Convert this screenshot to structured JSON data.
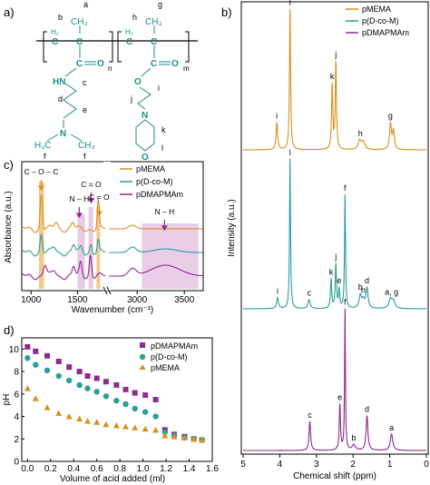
{
  "panels": {
    "a": {
      "label": "a)",
      "structure": {
        "left_unit": {
          "ch2": "H₂",
          "c": "C",
          "ch3": "CH₃",
          "co": "C",
          "o": "O",
          "sub": "n",
          "nh": "HN",
          "n": "N",
          "me1": "H₃C",
          "me2": "CH₃"
        },
        "right_unit": {
          "ch2": "H₂",
          "c": "C",
          "ch3": "CH₃",
          "co": "C",
          "o": "O",
          "sub": "m",
          "ester_o": "O",
          "n": "N",
          "ring_o": "O"
        },
        "letters": [
          "a",
          "b",
          "c",
          "d",
          "e",
          "f",
          "f",
          "g",
          "h",
          "i",
          "j",
          "k",
          "l"
        ]
      }
    },
    "b": {
      "label": "b)",
      "legend": [
        "pMEMA",
        "p(D-co-M)",
        "pDMAPMAm"
      ],
      "xlabel": "Chemical shift (ppm)",
      "ylabel": "Intensity (a.u.)",
      "xticks": [
        5,
        4,
        3,
        2,
        1,
        0
      ],
      "peak_labels": {
        "pMEMA": [
          {
            "t": "i",
            "x": 4.08
          },
          {
            "t": "l",
            "x": 3.72
          },
          {
            "t": "k",
            "x": 2.57
          },
          {
            "t": "j",
            "x": 2.47
          },
          {
            "t": "h",
            "x": 1.8
          },
          {
            "t": "g",
            "x": 0.98
          }
        ],
        "pDcoM": [
          {
            "t": "l",
            "x": 3.72
          },
          {
            "t": "f",
            "x": 2.22
          },
          {
            "t": "j",
            "x": 2.47
          },
          {
            "t": "k",
            "x": 2.6
          },
          {
            "t": "e",
            "x": 2.38
          },
          {
            "t": "i",
            "x": 4.06
          },
          {
            "t": "c",
            "x": 3.2
          },
          {
            "t": "d",
            "x": 1.62
          },
          {
            "t": "b",
            "x": 1.8
          },
          {
            "t": "h",
            "x": 1.72
          },
          {
            "t": "a, g",
            "x": 0.95
          }
        ],
        "pDMAPMAm": [
          {
            "t": "f",
            "x": 2.22
          },
          {
            "t": "c",
            "x": 3.18
          },
          {
            "t": "e",
            "x": 2.36
          },
          {
            "t": "d",
            "x": 1.62
          },
          {
            "t": "b",
            "x": 1.98
          },
          {
            "t": "a",
            "x": 0.95
          }
        ]
      }
    },
    "c": {
      "label": "c)",
      "legend": [
        "pMEMA",
        "p(D-co-M)",
        "pDMAPMAm"
      ],
      "xlabel": "Wavenumber (cm⁻¹)",
      "ylabel": "Absorbance (a.u.)",
      "xticks_left": [
        1000,
        1500
      ],
      "xticks_right": [
        3000,
        3500
      ],
      "band_labels": [
        {
          "t": "C – O – C",
          "x": 1110
        },
        {
          "t": "N – H",
          "x": 1535
        },
        {
          "t": "C = O",
          "x": 1645
        },
        {
          "t": "C = O",
          "x": 1725
        },
        {
          "t": "N – H",
          "x": 3290
        }
      ]
    },
    "d": {
      "label": "d)",
      "legend": [
        "pDMAPMAm",
        "p(D-co-M)",
        "pMEMA"
      ]
    }
  },
  "colors": {
    "pMEMA": "#D9901F",
    "pDcoM": "#2A9E9A",
    "pDMAPMAm": "#8E2A8C",
    "band_orange": "#E8B86B",
    "band_pink": "#D9A6D6",
    "chem": "#1B8C8C"
  },
  "chart_data": [
    {
      "panel": "d",
      "type": "scatter",
      "xlabel": "Volume of acid added (ml)",
      "ylabel": "pH",
      "xlim": [
        -0.05,
        1.6
      ],
      "ylim": [
        0,
        11
      ],
      "xticks": [
        0.0,
        0.2,
        0.4,
        0.6,
        0.8,
        1.0,
        1.2,
        1.4,
        1.6
      ],
      "yticks": [
        0,
        2,
        4,
        6,
        8,
        10
      ],
      "legend_position": "top-right",
      "series": [
        {
          "name": "pDMAPMAm",
          "marker": "square",
          "x": [
            0.0,
            0.07,
            0.17,
            0.27,
            0.36,
            0.45,
            0.52,
            0.6,
            0.68,
            0.77,
            0.85,
            0.93,
            1.02,
            1.11,
            1.19,
            1.27,
            1.36,
            1.44,
            1.51
          ],
          "y": [
            10.2,
            9.8,
            9.4,
            8.9,
            8.4,
            8.0,
            7.6,
            7.4,
            7.1,
            6.8,
            6.4,
            6.1,
            5.9,
            5.5,
            2.8,
            2.4,
            2.2,
            2.0,
            1.9
          ]
        },
        {
          "name": "p(D-co-M)",
          "marker": "circle",
          "x": [
            0.0,
            0.07,
            0.17,
            0.27,
            0.36,
            0.45,
            0.52,
            0.6,
            0.68,
            0.77,
            0.85,
            0.93,
            1.02,
            1.11,
            1.19,
            1.27,
            1.36,
            1.44,
            1.51
          ],
          "y": [
            9.2,
            8.6,
            8.1,
            7.6,
            7.2,
            6.8,
            6.5,
            6.2,
            5.8,
            5.4,
            5.1,
            4.7,
            4.4,
            4.0,
            2.6,
            2.3,
            2.1,
            2.0,
            1.9
          ]
        },
        {
          "name": "pMEMA",
          "marker": "triangle",
          "x": [
            0.0,
            0.07,
            0.17,
            0.27,
            0.36,
            0.45,
            0.52,
            0.6,
            0.68,
            0.77,
            0.85,
            0.93,
            1.02,
            1.11,
            1.19,
            1.27,
            1.36,
            1.44,
            1.51
          ],
          "y": [
            6.5,
            5.6,
            4.8,
            4.3,
            4.0,
            3.8,
            3.6,
            3.5,
            3.3,
            3.2,
            3.1,
            3.0,
            2.9,
            2.8,
            2.3,
            2.2,
            2.1,
            2.0,
            1.9
          ]
        }
      ]
    }
  ]
}
